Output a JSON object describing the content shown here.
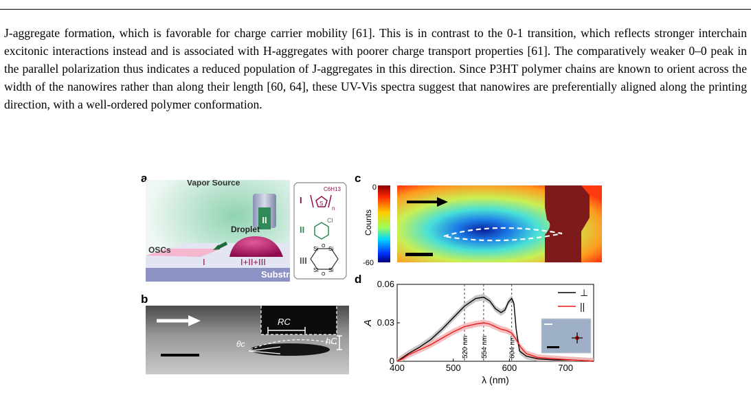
{
  "paragraph": "J-aggregate formation, which is favorable for charge carrier mobility [61]. This is in contrast to the 0-1 transition, which reflects stronger interchain excitonic interactions instead and is associated with H-aggregates with poorer charge transport properties [61]. The comparatively weaker 0–0 peak in the parallel polarization thus indicates a reduced population of J-aggregates in this direction. Since P3HT polymer chains are known to orient across the width of the nanowires rather than along their length [60, 64], these UV-Vis spectra suggest that nanowires are preferentially aligned along the printing direction, with a well-ordered polymer conformation.",
  "panels": {
    "a": {
      "label": "a",
      "vapor_source": "Vapor Source",
      "nozzle_label": "II",
      "droplet": "Droplet",
      "oscs": "OSCs",
      "film_label": "I",
      "droplet_label": "I+II+III",
      "substrate": "Substrate",
      "mol_I": "I",
      "mol_II": "II",
      "mol_III": "III",
      "c6h13": "C6H13",
      "s": "S",
      "n": "n",
      "cl": "Cl",
      "si": "Si",
      "o": "O"
    },
    "b": {
      "label": "b",
      "rc": "RC",
      "hc": "hC",
      "theta": "θc"
    },
    "c": {
      "label": "c",
      "cb_max": "0",
      "cb_min": "-60",
      "cb_label": "Counts"
    },
    "d": {
      "label": "d",
      "legend_perp": "⊥",
      "legend_par": "||",
      "vline_labels": [
        "520 nm",
        "554 nm",
        "604 nm"
      ]
    }
  },
  "chart_data": {
    "type": "line",
    "xlabel": "λ (nm)",
    "ylabel": "A",
    "xlim": [
      400,
      750
    ],
    "ylim": [
      0,
      0.06
    ],
    "x_ticks": [
      400,
      500,
      600,
      700
    ],
    "y_ticks": [
      0,
      0.03,
      0.06
    ],
    "y_tick_labels": [
      "0",
      "0.03",
      "0.06"
    ],
    "vlines": [
      520,
      554,
      604
    ],
    "series": [
      {
        "name": "⊥",
        "color": "#000000",
        "x": [
          400,
          410,
          420,
          440,
          460,
          480,
          500,
          520,
          540,
          554,
          565,
          575,
          585,
          592,
          598,
          604,
          608,
          612,
          618,
          630,
          650,
          680,
          710,
          750
        ],
        "y": [
          0.0,
          0.003,
          0.006,
          0.011,
          0.017,
          0.025,
          0.034,
          0.043,
          0.049,
          0.05,
          0.047,
          0.041,
          0.038,
          0.04,
          0.046,
          0.049,
          0.045,
          0.025,
          0.008,
          0.004,
          0.002,
          0.001,
          0.001,
          0.0
        ]
      },
      {
        "name": "||",
        "color": "#e8191a",
        "x": [
          400,
          410,
          420,
          440,
          460,
          480,
          500,
          520,
          540,
          554,
          565,
          575,
          585,
          595,
          604,
          612,
          620,
          630,
          650,
          680,
          710,
          750
        ],
        "y": [
          0.0,
          0.002,
          0.005,
          0.009,
          0.013,
          0.018,
          0.023,
          0.027,
          0.029,
          0.03,
          0.029,
          0.027,
          0.025,
          0.024,
          0.022,
          0.017,
          0.011,
          0.006,
          0.003,
          0.002,
          0.001,
          0.0
        ]
      }
    ]
  }
}
